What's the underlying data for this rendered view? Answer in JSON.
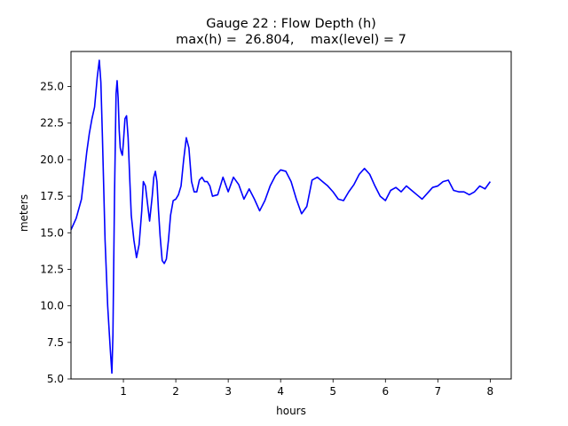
{
  "chart_data": {
    "type": "line",
    "title": "Gauge 22 : Flow Depth (h)",
    "subtitle": "max(h) =  26.804,    max(level) = 7",
    "xlabel": "hours",
    "ylabel": "meters",
    "xlim": [
      0,
      8.4
    ],
    "ylim": [
      5.0,
      27.4
    ],
    "xticks": [
      1,
      2,
      3,
      4,
      5,
      6,
      7,
      8
    ],
    "xtick_labels": [
      "1",
      "2",
      "3",
      "4",
      "5",
      "6",
      "7",
      "8"
    ],
    "yticks": [
      5.0,
      7.5,
      10.0,
      12.5,
      15.0,
      17.5,
      20.0,
      22.5,
      25.0
    ],
    "ytick_labels": [
      "5.0",
      "7.5",
      "10.0",
      "12.5",
      "15.0",
      "17.5",
      "20.0",
      "22.5",
      "25.0"
    ],
    "grid": false,
    "legend": "none",
    "series": [
      {
        "color": "#0000ff",
        "x": [
          0.0,
          0.1,
          0.2,
          0.3,
          0.35,
          0.4,
          0.45,
          0.5,
          0.54,
          0.57,
          0.6,
          0.65,
          0.7,
          0.75,
          0.78,
          0.8,
          0.83,
          0.86,
          0.88,
          0.9,
          0.92,
          0.94,
          0.96,
          0.98,
          1.0,
          1.03,
          1.06,
          1.09,
          1.12,
          1.15,
          1.2,
          1.25,
          1.3,
          1.35,
          1.38,
          1.42,
          1.46,
          1.5,
          1.55,
          1.58,
          1.61,
          1.64,
          1.67,
          1.7,
          1.74,
          1.78,
          1.82,
          1.86,
          1.9,
          1.95,
          2.0,
          2.05,
          2.1,
          2.15,
          2.2,
          2.25,
          2.3,
          2.35,
          2.4,
          2.45,
          2.5,
          2.55,
          2.6,
          2.65,
          2.7,
          2.8,
          2.9,
          3.0,
          3.1,
          3.2,
          3.3,
          3.4,
          3.5,
          3.6,
          3.7,
          3.8,
          3.9,
          4.0,
          4.1,
          4.2,
          4.3,
          4.4,
          4.5,
          4.6,
          4.7,
          4.8,
          4.9,
          5.0,
          5.1,
          5.2,
          5.3,
          5.4,
          5.5,
          5.6,
          5.7,
          5.8,
          5.9,
          6.0,
          6.1,
          6.2,
          6.3,
          6.4,
          6.5,
          6.6,
          6.7,
          6.8,
          6.9,
          7.0,
          7.1,
          7.2,
          7.3,
          7.4,
          7.5,
          7.6,
          7.7,
          7.8,
          7.9,
          8.0
        ],
        "y": [
          15.2,
          16.0,
          17.3,
          20.5,
          21.8,
          22.8,
          23.6,
          25.6,
          26.8,
          25.3,
          21.5,
          14.5,
          10.0,
          7.0,
          5.4,
          8.0,
          17.5,
          24.5,
          25.4,
          24.2,
          22.0,
          20.8,
          20.5,
          20.3,
          21.2,
          22.8,
          23.0,
          21.5,
          18.8,
          16.2,
          14.5,
          13.3,
          14.2,
          16.5,
          18.5,
          18.2,
          17.0,
          15.8,
          17.5,
          18.8,
          19.2,
          18.5,
          16.5,
          14.8,
          13.1,
          12.9,
          13.2,
          14.5,
          16.2,
          17.2,
          17.3,
          17.6,
          18.2,
          20.0,
          21.5,
          20.8,
          18.5,
          17.8,
          17.8,
          18.6,
          18.8,
          18.5,
          18.5,
          18.2,
          17.5,
          17.6,
          18.8,
          17.8,
          18.8,
          18.3,
          17.3,
          18.0,
          17.3,
          16.5,
          17.2,
          18.2,
          18.9,
          19.3,
          19.2,
          18.5,
          17.3,
          16.3,
          16.8,
          18.6,
          18.8,
          18.5,
          18.2,
          17.8,
          17.3,
          17.2,
          17.8,
          18.3,
          19.0,
          19.4,
          19.0,
          18.2,
          17.5,
          17.2,
          17.9,
          18.1,
          17.8,
          18.2,
          17.9,
          17.6,
          17.3,
          17.7,
          18.1,
          18.2,
          18.5,
          18.6,
          17.9,
          17.8,
          17.8,
          17.6,
          17.8,
          18.2,
          18.0,
          18.5
        ]
      }
    ]
  }
}
